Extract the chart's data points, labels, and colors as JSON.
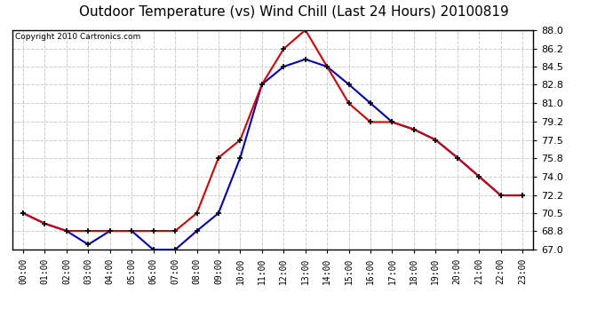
{
  "title": "Outdoor Temperature (vs) Wind Chill (Last 24 Hours) 20100819",
  "copyright": "Copyright 2010 Cartronics.com",
  "x_labels": [
    "00:00",
    "01:00",
    "02:00",
    "03:00",
    "04:00",
    "05:00",
    "06:00",
    "07:00",
    "08:00",
    "09:00",
    "10:00",
    "11:00",
    "12:00",
    "13:00",
    "14:00",
    "15:00",
    "16:00",
    "17:00",
    "18:00",
    "19:00",
    "20:00",
    "21:00",
    "22:00",
    "23:00"
  ],
  "temp": [
    70.5,
    69.5,
    68.8,
    68.8,
    68.8,
    68.8,
    68.8,
    68.8,
    70.5,
    75.8,
    77.5,
    82.8,
    86.2,
    88.0,
    84.5,
    81.0,
    79.2,
    79.2,
    78.5,
    77.5,
    75.8,
    74.0,
    72.2,
    72.2
  ],
  "wind_chill": [
    70.5,
    69.5,
    68.8,
    67.5,
    68.8,
    68.8,
    67.0,
    67.0,
    68.8,
    70.5,
    75.8,
    82.8,
    84.5,
    85.2,
    84.5,
    82.8,
    81.0,
    79.2,
    78.5,
    77.5,
    75.8,
    74.0,
    72.2,
    72.2
  ],
  "ylim": [
    67.0,
    88.0
  ],
  "yticks": [
    67.0,
    68.8,
    70.5,
    72.2,
    74.0,
    75.8,
    77.5,
    79.2,
    81.0,
    82.8,
    84.5,
    86.2,
    88.0
  ],
  "temp_color": "#dd0000",
  "wind_chill_color": "#0000cc",
  "grid_color": "#cccccc",
  "bg_color": "#ffffff",
  "title_fontsize": 11,
  "copyright_fontsize": 6.5
}
